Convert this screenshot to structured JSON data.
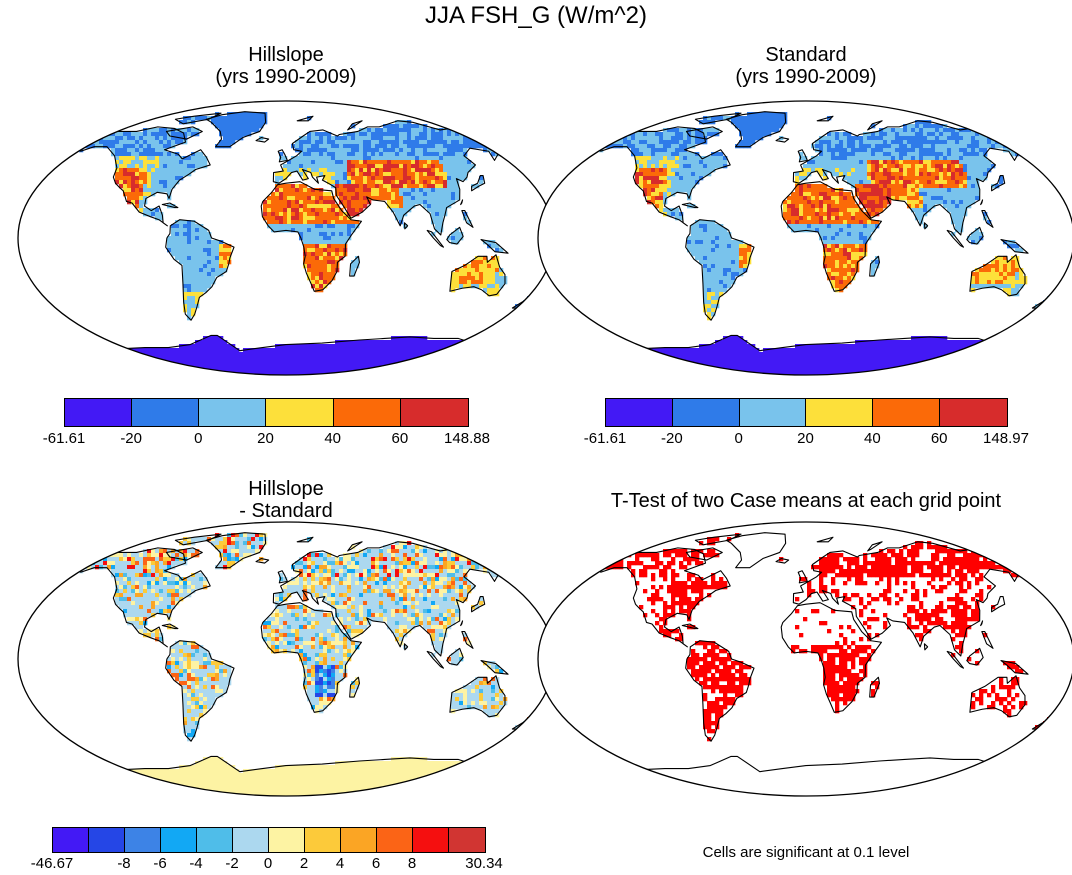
{
  "title": "JJA FSH_G (W/m^2)",
  "panels": [
    {
      "id": "hillslope",
      "title_line1": "Hillslope",
      "title_line2": "(yrs 1990-2009)",
      "scheme": "abs"
    },
    {
      "id": "standard",
      "title_line1": "Standard",
      "title_line2": "(yrs 1990-2009)",
      "scheme": "abs"
    },
    {
      "id": "difference",
      "title_line1": "Hillslope",
      "title_line2": "- Standard",
      "scheme": "diff"
    },
    {
      "id": "ttest",
      "title_line1": "T-Test of two Case means at each grid point",
      "title_line2": "",
      "scheme": "sig"
    }
  ],
  "colorbars": {
    "hillslope": {
      "colors": [
        "#4319f5",
        "#2f7be9",
        "#79c3ec",
        "#fde03a",
        "#fb6a08",
        "#d72c2c"
      ],
      "labels": [
        "-61.61",
        "-20",
        "0",
        "20",
        "40",
        "60",
        "148.88"
      ]
    },
    "standard": {
      "colors": [
        "#4319f5",
        "#2f7be9",
        "#79c3ec",
        "#fde03a",
        "#fb6a08",
        "#d72c2c"
      ],
      "labels": [
        "-61.61",
        "-20",
        "0",
        "20",
        "40",
        "60",
        "148.97"
      ]
    },
    "difference": {
      "colors": [
        "#4319f5",
        "#2546e6",
        "#3d83e6",
        "#12a8f4",
        "#4fbde9",
        "#acd8ef",
        "#fdf3a3",
        "#fcca3a",
        "#fba524",
        "#fb6416",
        "#f50f0f",
        "#d13532"
      ],
      "labels": [
        "-46.67",
        "",
        "-8",
        "-6",
        "-4",
        "-2",
        "0",
        "2",
        "4",
        "6",
        "8",
        "",
        "30.34"
      ]
    }
  },
  "significance_color": "#ff0000",
  "note": "Cells are significant at 0.1 level"
}
